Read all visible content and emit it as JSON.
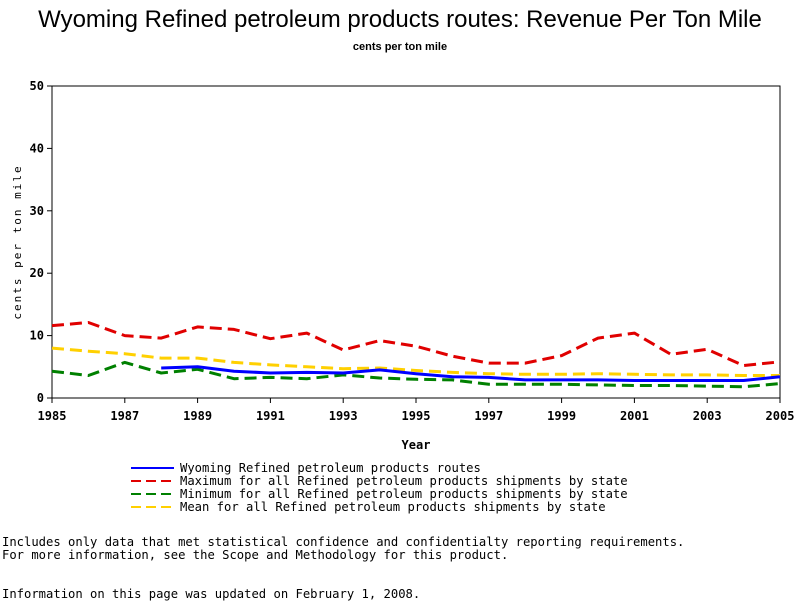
{
  "chart_data": {
    "type": "line",
    "title": "Wyoming Refined petroleum products routes: Revenue Per Ton Mile",
    "subtitle": "cents per ton mile",
    "xlabel": "Year",
    "ylabel": "cents per ton mile",
    "xlim": [
      1985,
      2005
    ],
    "ylim": [
      0,
      50
    ],
    "x_ticks": [
      "1985",
      "1987",
      "1989",
      "1991",
      "1993",
      "1995",
      "1997",
      "1999",
      "2001",
      "2003",
      "2005"
    ],
    "y_ticks": [
      "0",
      "10",
      "20",
      "30",
      "40",
      "50"
    ],
    "grid": false,
    "legend_position": "bottom",
    "series": [
      {
        "name": "Wyoming Refined petroleum products routes",
        "color": "#0000ff",
        "style": "solid",
        "x": [
          1988,
          1989,
          1990,
          1991,
          1992,
          1993,
          1994,
          1995,
          1996,
          1997,
          1998,
          1999,
          2000,
          2001,
          2002,
          2003,
          2004,
          2005
        ],
        "y": [
          4.8,
          5.0,
          4.3,
          4.0,
          4.1,
          4.0,
          4.5,
          3.9,
          3.4,
          3.3,
          2.9,
          2.9,
          2.9,
          2.8,
          2.8,
          2.8,
          2.8,
          3.4
        ]
      },
      {
        "name": "Maximum for all Refined petroleum products shipments by state",
        "color": "#e00000",
        "style": "dashed",
        "x": [
          1985,
          1986,
          1987,
          1988,
          1989,
          1990,
          1991,
          1992,
          1993,
          1994,
          1995,
          1996,
          1997,
          1998,
          1999,
          2000,
          2001,
          2002,
          2003,
          2004,
          2005
        ],
        "y": [
          11.6,
          12.1,
          10.0,
          9.6,
          11.4,
          11.0,
          9.5,
          10.4,
          7.7,
          9.2,
          8.3,
          6.7,
          5.6,
          5.6,
          6.8,
          9.6,
          10.4,
          7.0,
          7.8,
          5.2,
          5.8
        ]
      },
      {
        "name": "Minimum for all Refined petroleum products shipments by state",
        "color": "#008000",
        "style": "dashed",
        "x": [
          1985,
          1986,
          1987,
          1988,
          1989,
          1990,
          1991,
          1992,
          1993,
          1994,
          1995,
          1996,
          1997,
          1998,
          1999,
          2000,
          2001,
          2002,
          2003,
          2004,
          2005
        ],
        "y": [
          4.3,
          3.6,
          5.7,
          4.0,
          4.6,
          3.1,
          3.3,
          3.1,
          3.7,
          3.2,
          3.0,
          2.9,
          2.2,
          2.2,
          2.2,
          2.1,
          2.0,
          2.0,
          1.9,
          1.8,
          2.3
        ]
      },
      {
        "name": "Mean for all Refined petroleum products shipments by state",
        "color": "#ffd000",
        "style": "dashed",
        "x": [
          1985,
          1986,
          1987,
          1988,
          1989,
          1990,
          1991,
          1992,
          1993,
          1994,
          1995,
          1996,
          1997,
          1998,
          1999,
          2000,
          2001,
          2002,
          2003,
          2004,
          2005
        ],
        "y": [
          8.0,
          7.5,
          7.1,
          6.4,
          6.4,
          5.7,
          5.3,
          5.0,
          4.7,
          4.8,
          4.4,
          4.1,
          3.9,
          3.8,
          3.8,
          3.9,
          3.8,
          3.7,
          3.7,
          3.6,
          3.6
        ]
      }
    ]
  },
  "notes": {
    "line1": "Includes only data that met statistical confidence and confidentialty reporting requirements.",
    "line2": "For more information, see the Scope and Methodology for this product.",
    "updated": "Information on this page was updated on February 1, 2008."
  }
}
